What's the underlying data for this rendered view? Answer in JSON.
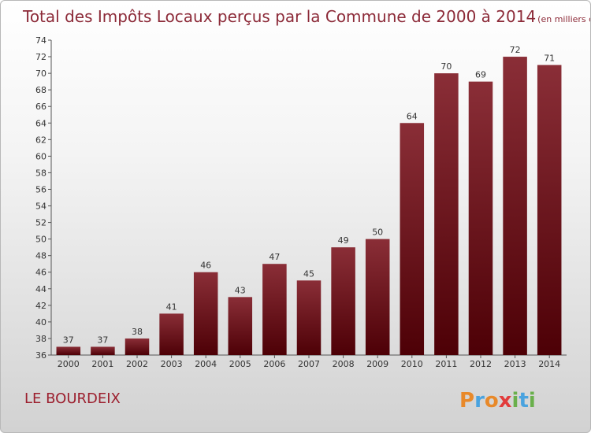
{
  "chart_data": {
    "type": "bar",
    "title": "Total des Impôts Locaux perçus par la Commune de 2000 à 2014",
    "unit_note": "(en milliers d'€)",
    "categories": [
      "2000",
      "2001",
      "2002",
      "2003",
      "2004",
      "2005",
      "2006",
      "2007",
      "2008",
      "2009",
      "2010",
      "2011",
      "2012",
      "2013",
      "2014"
    ],
    "values": [
      37,
      37,
      38,
      41,
      46,
      43,
      47,
      45,
      49,
      50,
      64,
      70,
      69,
      72,
      71
    ],
    "ylim": [
      36,
      74
    ],
    "ytick_step": 2,
    "xlabel": "",
    "ylabel": "",
    "bar_color": "#6e1a22",
    "grid": false
  },
  "commune_name": "LE BOURDEIX",
  "brand": {
    "letters": [
      "P",
      "r",
      "o",
      "x",
      "i",
      "t",
      "i"
    ],
    "colors": [
      "#e8892a",
      "#4aa3df",
      "#e8892a",
      "#e23c3c",
      "#6ab04c",
      "#4aa3df",
      "#6ab04c"
    ]
  }
}
